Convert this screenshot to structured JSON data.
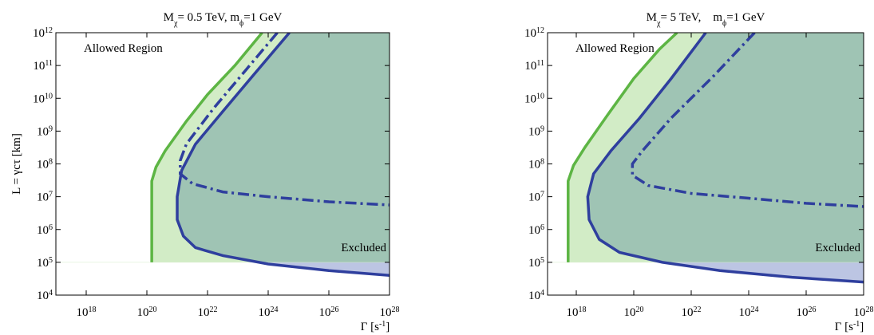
{
  "chart_data": [
    {
      "type": "line",
      "title": "M_χ= 0.5 TeV, m_ϕ=1 GeV",
      "x_label": "Γ [s^-1]",
      "y_label": "L = γcτ [km]",
      "annotations": [
        "Allowed Region",
        "Excluded"
      ],
      "xscale": "log",
      "yscale": "log",
      "xlim": [
        1e+17,
        1e+28
      ],
      "ylim": [
        10000,
        1000000000000.0
      ],
      "xticks": [
        {
          "value": 1e+18,
          "label": "10^18"
        },
        {
          "value": 1e+20,
          "label": "10^20"
        },
        {
          "value": 1e+22,
          "label": "10^22"
        },
        {
          "value": 1e+24,
          "label": "10^24"
        },
        {
          "value": 1e+26,
          "label": "10^26"
        },
        {
          "value": 1e+28,
          "label": "10^28"
        }
      ],
      "yticks": [
        {
          "value": 10000,
          "label": "10^4"
        },
        {
          "value": 100000,
          "label": "10^5"
        },
        {
          "value": 1000000,
          "label": "10^6"
        },
        {
          "value": 10000000,
          "label": "10^7"
        },
        {
          "value": 100000000,
          "label": "10^8"
        },
        {
          "value": 1000000000,
          "label": "10^9"
        },
        {
          "value": 10000000000,
          "label": "10^10"
        },
        {
          "value": 100000000000,
          "label": "10^11"
        },
        {
          "value": 1000000000000,
          "label": "10^12"
        }
      ],
      "boundary_y": 100000,
      "series": [
        {
          "color": "#5db544",
          "style": "solid",
          "fill": "#d2ecc6",
          "x": [
            1.45e+20,
            1.45e+20,
            2e+20,
            4e+20,
            2e+21,
            1e+22,
            8e+22,
            6.3e+23
          ],
          "values": [
            100000,
            30000000,
            80000000,
            250000000,
            2000000000,
            13000000000,
            100000000000,
            1000000000000
          ]
        },
        {
          "color": "#2f3f9e",
          "style": "solid",
          "fill": "#bcc5e3",
          "fill_above": "#9fc4b4",
          "x": [
            5e+24,
            3.2e+23,
            3.2e+22,
            4e+21,
            1.4e+21,
            1e+21,
            1e+21,
            1.6e+21,
            4e+21,
            3.2e+22,
            1e+24,
            1e+26,
            1e+28
          ],
          "values": [
            1000000000000,
            50000000000,
            4000000000,
            400000000,
            63000000,
            10000000,
            2000000,
            630000,
            280000,
            160000,
            89000,
            56000,
            40000
          ]
        },
        {
          "color": "#2f3f9e",
          "style": "dashdot",
          "x": [
            2e+24,
            2e+23,
            1.6e+22,
            2e+21,
            1.26e+21,
            1.26e+21,
            3.2e+21,
            3.2e+22,
            1e+24,
            1e+26,
            1e+28
          ],
          "values": [
            1000000000000,
            80000000000,
            5000000000,
            400000000,
            126000000,
            50000000,
            25000000,
            14000000,
            10000000,
            7000000,
            5600000
          ]
        }
      ]
    },
    {
      "type": "line",
      "title": "M_χ= 5 TeV,    m_ϕ=1 GeV",
      "x_label": "Γ [s^-1]",
      "annotations": [
        "Allowed Region",
        "Excluded"
      ],
      "xscale": "log",
      "yscale": "log",
      "xlim": [
        1e+17,
        1e+28
      ],
      "ylim": [
        10000,
        1000000000000.0
      ],
      "xticks": [
        {
          "value": 1e+18,
          "label": "10^18"
        },
        {
          "value": 1e+20,
          "label": "10^20"
        },
        {
          "value": 1e+22,
          "label": "10^22"
        },
        {
          "value": 1e+24,
          "label": "10^24"
        },
        {
          "value": 1e+26,
          "label": "10^26"
        },
        {
          "value": 1e+28,
          "label": "10^28"
        }
      ],
      "yticks": [
        {
          "value": 10000,
          "label": "10^4"
        },
        {
          "value": 100000,
          "label": "10^5"
        },
        {
          "value": 1000000,
          "label": "10^6"
        },
        {
          "value": 10000000,
          "label": "10^7"
        },
        {
          "value": 100000000,
          "label": "10^8"
        },
        {
          "value": 1000000000,
          "label": "10^9"
        },
        {
          "value": 10000000000,
          "label": "10^10"
        },
        {
          "value": 100000000000,
          "label": "10^11"
        },
        {
          "value": 1000000000000,
          "label": "10^12"
        }
      ],
      "boundary_y": 100000,
      "series": [
        {
          "color": "#5db544",
          "style": "solid",
          "fill": "#d2ecc6",
          "x": [
            5.2e+17,
            5.2e+17,
            8e+17,
            2e+18,
            1.26e+19,
            1e+20,
            8e+20,
            3.2e+21
          ],
          "values": [
            100000,
            30000000,
            90000000,
            320000000,
            3200000000,
            40000000000,
            320000000000,
            1000000000000
          ]
        },
        {
          "color": "#2f3f9e",
          "style": "solid",
          "fill": "#bcc5e3",
          "fill_above": "#9fc4b4",
          "x": [
            3.2e+22,
            2e+21,
            1.6e+20,
            1.6e+19,
            4e+18,
            2.5e+18,
            2.8e+18,
            6.3e+18,
            3.2e+19,
            1e+21,
            1e+23,
            3.2e+25,
            1e+28
          ],
          "values": [
            1000000000000,
            40000000000,
            2500000000,
            250000000,
            50000000,
            10000000,
            2000000,
            500000,
            200000,
            100000,
            56000,
            35000,
            25000
          ]
        },
        {
          "color": "#2f3f9e",
          "style": "dashdot",
          "x": [
            1.6e+24,
            6.3e+22,
            2e+21,
            2e+20,
            9e+19,
            9e+19,
            3.2e+20,
            1e+22,
            1e+24,
            1e+26,
            1e+28
          ],
          "values": [
            1000000000000,
            50000000000,
            2500000000,
            250000000,
            100000000,
            45000000,
            22000000,
            12600000,
            9000000,
            6300000,
            5000000
          ]
        }
      ]
    }
  ]
}
